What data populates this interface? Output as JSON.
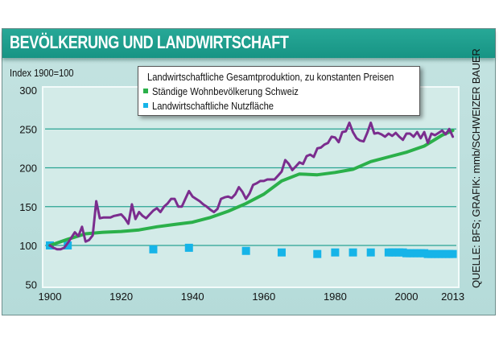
{
  "title": "BEVÖLKERUNG UND LANDWIRTSCHAFT",
  "index_label": "Index 1900=100",
  "source": "QUELLE: BFS; GRAFIK: mmb/SCHWEIZER BAUER",
  "colors": {
    "production": "#7b2d8e",
    "population": "#2bb04a",
    "area": "#16b4e8",
    "gridline": "#2aa493"
  },
  "chart_data": {
    "type": "line",
    "title": "BEVÖLKERUNG UND LANDWIRTSCHAFT",
    "xlabel": "",
    "ylabel": "Index 1900=100",
    "xlim": [
      1900,
      2013
    ],
    "ylim": [
      50,
      300
    ],
    "x_ticks": [
      1900,
      1920,
      1940,
      1960,
      1980,
      2000,
      2013
    ],
    "y_ticks": [
      50,
      100,
      150,
      200,
      250,
      300
    ],
    "grid": "horizontal",
    "legend_position": "top-center",
    "series": [
      {
        "name": "Landwirtschaftliche Gesamtproduktion, zu konstanten Preisen",
        "style": "line",
        "x": [
          1900,
          1901,
          1902,
          1903,
          1904,
          1905,
          1906,
          1907,
          1908,
          1909,
          1910,
          1911,
          1912,
          1913,
          1914,
          1915,
          1916,
          1917,
          1918,
          1919,
          1920,
          1921,
          1922,
          1923,
          1924,
          1925,
          1926,
          1927,
          1928,
          1929,
          1930,
          1931,
          1932,
          1933,
          1934,
          1935,
          1936,
          1937,
          1938,
          1939,
          1940,
          1941,
          1942,
          1943,
          1944,
          1945,
          1946,
          1947,
          1948,
          1949,
          1950,
          1951,
          1952,
          1953,
          1954,
          1955,
          1956,
          1957,
          1958,
          1959,
          1960,
          1961,
          1962,
          1963,
          1964,
          1965,
          1966,
          1967,
          1968,
          1969,
          1970,
          1971,
          1972,
          1973,
          1974,
          1975,
          1976,
          1977,
          1978,
          1979,
          1980,
          1981,
          1982,
          1983,
          1984,
          1985,
          1986,
          1987,
          1988,
          1989,
          1990,
          1991,
          1992,
          1993,
          1994,
          1995,
          1996,
          1997,
          1998,
          1999,
          2000,
          2001,
          2002,
          2003,
          2004,
          2005,
          2006,
          2007,
          2008,
          2009,
          2010,
          2011,
          2012,
          2013
        ],
        "values": [
          100,
          97,
          95,
          95,
          97,
          103,
          110,
          117,
          112,
          124,
          105,
          107,
          113,
          157,
          135,
          136,
          136,
          136,
          138,
          139,
          140,
          135,
          128,
          153,
          134,
          143,
          138,
          135,
          140,
          145,
          148,
          143,
          150,
          154,
          160,
          160,
          150,
          150,
          160,
          170,
          163,
          160,
          157,
          153,
          150,
          146,
          143,
          147,
          160,
          162,
          163,
          161,
          166,
          175,
          169,
          160,
          167,
          178,
          180,
          183,
          183,
          185,
          185,
          185,
          190,
          195,
          210,
          205,
          197,
          202,
          207,
          205,
          215,
          217,
          214,
          225,
          226,
          230,
          232,
          240,
          239,
          233,
          246,
          247,
          258,
          246,
          238,
          235,
          234,
          245,
          258,
          244,
          245,
          243,
          240,
          244,
          241,
          245,
          240,
          236,
          244,
          244,
          240,
          246,
          238,
          246,
          232,
          244,
          242,
          245,
          248,
          243,
          250,
          240
        ]
      },
      {
        "name": "Ständige Wohnbevölkerung Schweiz",
        "style": "line",
        "x": [
          1900,
          1905,
          1910,
          1915,
          1920,
          1925,
          1930,
          1935,
          1940,
          1945,
          1950,
          1955,
          1960,
          1965,
          1970,
          1975,
          1980,
          1985,
          1990,
          1995,
          2000,
          2005,
          2010,
          2013
        ],
        "values": [
          100,
          108,
          115,
          117,
          118,
          120,
          124,
          127,
          130,
          136,
          144,
          154,
          166,
          183,
          192,
          191,
          194,
          198,
          208,
          214,
          220,
          228,
          242,
          248
        ]
      },
      {
        "name": "Landwirtschaftliche Nutzfläche",
        "style": "markers",
        "x": [
          1900,
          1905,
          1929,
          1939,
          1955,
          1965,
          1975,
          1980,
          1985,
          1990,
          1995,
          1996,
          1997,
          1998,
          1999,
          2000,
          2001,
          2002,
          2003,
          2004,
          2005,
          2006,
          2007,
          2008,
          2009,
          2010,
          2011,
          2012,
          2013
        ],
        "values": [
          100,
          100,
          95,
          97,
          93,
          91,
          89,
          91,
          91,
          91,
          91,
          91,
          91,
          91,
          91,
          90,
          90,
          90,
          90,
          90,
          90,
          89,
          89,
          89,
          89,
          89,
          89,
          89,
          89
        ]
      }
    ]
  }
}
